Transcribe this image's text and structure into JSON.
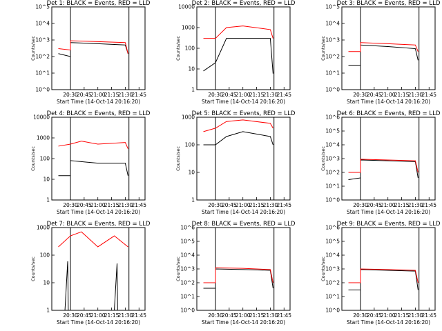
{
  "figure": {
    "xlabel": "Start Time (14-Oct-14 20:16:20)",
    "ylabel": "Counts/sec",
    "xticks": [
      "20:30",
      "20:45",
      "21:00",
      "21:15",
      "21:30",
      "21:45"
    ],
    "colors": {
      "events": "#000000",
      "lld": "#ff0000",
      "background": "#ffffff"
    }
  },
  "chart_data": [
    {
      "type": "line",
      "title": "Det 1: BLACK = Events, RED = LLD",
      "ytype": "log",
      "ylim": [
        1,
        100000
      ],
      "yticks": [
        "10^0",
        "10^1",
        "10^2",
        "10^3",
        "10^4",
        "10^5"
      ],
      "events_window": [
        "20:30",
        "21:34"
      ],
      "series": [
        {
          "color": "#000000",
          "points": [
            [
              20.28,
              150
            ],
            [
              20.5,
              100
            ],
            [
              20.5,
              700
            ],
            [
              21.0,
              600
            ],
            [
              21.5,
              500
            ],
            [
              21.55,
              150
            ]
          ]
        },
        {
          "color": "#ff0000",
          "points": [
            [
              20.28,
              300
            ],
            [
              20.5,
              250
            ],
            [
              20.5,
              900
            ],
            [
              21.0,
              800
            ],
            [
              21.5,
              700
            ],
            [
              21.55,
              150
            ]
          ]
        }
      ]
    },
    {
      "type": "line",
      "title": "Det 2: BLACK = Events, RED = LLD",
      "ytype": "log",
      "ylim": [
        1,
        10000
      ],
      "yticks": [
        "1",
        "10",
        "100",
        "1000",
        "10000"
      ],
      "events_window": [
        "20:30",
        "21:34"
      ],
      "series": [
        {
          "color": "#000000",
          "points": [
            [
              20.28,
              8
            ],
            [
              20.5,
              20
            ],
            [
              20.7,
              300
            ],
            [
              21.0,
              300
            ],
            [
              21.5,
              300
            ],
            [
              21.55,
              6
            ]
          ]
        },
        {
          "color": "#ff0000",
          "points": [
            [
              20.28,
              300
            ],
            [
              20.5,
              300
            ],
            [
              20.7,
              1000
            ],
            [
              21.0,
              1200
            ],
            [
              21.5,
              800
            ],
            [
              21.55,
              300
            ]
          ]
        }
      ]
    },
    {
      "type": "line",
      "title": "Det 3: BLACK = Events, RED = LLD",
      "ytype": "log",
      "ylim": [
        1,
        100000
      ],
      "yticks": [
        "10^0",
        "10^1",
        "10^2",
        "10^3",
        "10^4",
        "10^5"
      ],
      "events_window": [
        "20:30",
        "21:34"
      ],
      "series": [
        {
          "color": "#000000",
          "points": [
            [
              20.28,
              30
            ],
            [
              20.5,
              30
            ],
            [
              20.5,
              500
            ],
            [
              21.0,
              400
            ],
            [
              21.5,
              300
            ],
            [
              21.55,
              60
            ]
          ]
        },
        {
          "color": "#ff0000",
          "points": [
            [
              20.28,
              200
            ],
            [
              20.5,
              200
            ],
            [
              20.5,
              700
            ],
            [
              21.0,
              600
            ],
            [
              21.5,
              500
            ],
            [
              21.55,
              200
            ]
          ]
        }
      ]
    },
    {
      "type": "line",
      "title": "Det 4: BLACK = Events, RED = LLD",
      "ytype": "log",
      "ylim": [
        1,
        10000
      ],
      "yticks": [
        "1",
        "10",
        "100",
        "1000",
        "10000"
      ],
      "events_window": [
        "20:30",
        "21:34"
      ],
      "series": [
        {
          "color": "#000000",
          "points": [
            [
              20.28,
              15
            ],
            [
              20.5,
              15
            ],
            [
              20.5,
              80
            ],
            [
              21.0,
              60
            ],
            [
              21.5,
              60
            ],
            [
              21.55,
              15
            ]
          ]
        },
        {
          "color": "#ff0000",
          "points": [
            [
              20.28,
              400
            ],
            [
              20.5,
              500
            ],
            [
              20.7,
              700
            ],
            [
              21.0,
              500
            ],
            [
              21.5,
              600
            ],
            [
              21.55,
              300
            ]
          ]
        }
      ]
    },
    {
      "type": "line",
      "title": "Det 5: BLACK = Events, RED = LLD",
      "ytype": "log",
      "ylim": [
        1,
        1000
      ],
      "yticks": [
        "1",
        "10",
        "100",
        "1000"
      ],
      "events_window": [
        "20:30",
        "21:34"
      ],
      "series": [
        {
          "color": "#000000",
          "points": [
            [
              20.28,
              100
            ],
            [
              20.5,
              100
            ],
            [
              20.7,
              200
            ],
            [
              21.0,
              300
            ],
            [
              21.5,
              200
            ],
            [
              21.55,
              100
            ]
          ]
        },
        {
          "color": "#ff0000",
          "points": [
            [
              20.28,
              300
            ],
            [
              20.5,
              400
            ],
            [
              20.7,
              700
            ],
            [
              21.0,
              800
            ],
            [
              21.5,
              600
            ],
            [
              21.55,
              400
            ]
          ]
        }
      ]
    },
    {
      "type": "line",
      "title": "Det 6: BLACK = Events, RED = LLD",
      "ytype": "log",
      "ylim": [
        1,
        1000000
      ],
      "yticks": [
        "10^0",
        "10^1",
        "10^2",
        "10^3",
        "10^4",
        "10^5",
        "10^6"
      ],
      "events_window": [
        "20:30",
        "21:34"
      ],
      "series": [
        {
          "color": "#000000",
          "points": [
            [
              20.28,
              30
            ],
            [
              20.5,
              40
            ],
            [
              20.5,
              800
            ],
            [
              21.0,
              700
            ],
            [
              21.5,
              600
            ],
            [
              21.55,
              40
            ]
          ]
        },
        {
          "color": "#ff0000",
          "points": [
            [
              20.28,
              100
            ],
            [
              20.5,
              100
            ],
            [
              20.5,
              900
            ],
            [
              21.0,
              800
            ],
            [
              21.5,
              700
            ],
            [
              21.55,
              100
            ]
          ]
        }
      ]
    },
    {
      "type": "line",
      "title": "Det 7: BLACK = Events, RED = LLD",
      "ytype": "log",
      "ylim": [
        1,
        1000
      ],
      "yticks": [
        "1",
        "10",
        "100",
        "1000"
      ],
      "events_window": [
        "20:30",
        "21:34"
      ],
      "series": [
        {
          "color": "#000000",
          "points": [
            [
              20.4,
              1
            ],
            [
              20.45,
              60
            ],
            [
              20.46,
              1
            ],
            [
              21.3,
              1
            ],
            [
              21.35,
              50
            ],
            [
              21.36,
              1
            ]
          ]
        },
        {
          "color": "#ff0000",
          "points": [
            [
              20.28,
              200
            ],
            [
              20.5,
              500
            ],
            [
              20.7,
              700
            ],
            [
              21.0,
              200
            ],
            [
              21.3,
              500
            ],
            [
              21.55,
              200
            ]
          ]
        }
      ]
    },
    {
      "type": "line",
      "title": "Det 8: BLACK = Events, RED = LLD",
      "ytype": "log",
      "ylim": [
        1,
        1000000
      ],
      "yticks": [
        "10^0",
        "10^1",
        "10^2",
        "10^3",
        "10^4",
        "10^5",
        "10^6"
      ],
      "events_window": [
        "20:30",
        "21:34"
      ],
      "series": [
        {
          "color": "#000000",
          "points": [
            [
              20.28,
              40
            ],
            [
              20.5,
              40
            ],
            [
              20.5,
              1000
            ],
            [
              21.0,
              900
            ],
            [
              21.5,
              800
            ],
            [
              21.55,
              40
            ]
          ]
        },
        {
          "color": "#ff0000",
          "points": [
            [
              20.28,
              100
            ],
            [
              20.5,
              100
            ],
            [
              20.5,
              1200
            ],
            [
              21.0,
              1100
            ],
            [
              21.5,
              900
            ],
            [
              21.55,
              100
            ]
          ]
        }
      ]
    },
    {
      "type": "line",
      "title": "Det 9: BLACK = Events, RED = LLD",
      "ytype": "log",
      "ylim": [
        1,
        1000000
      ],
      "yticks": [
        "10^0",
        "10^1",
        "10^2",
        "10^3",
        "10^4",
        "10^5",
        "10^6"
      ],
      "events_window": [
        "20:30",
        "21:34"
      ],
      "series": [
        {
          "color": "#000000",
          "points": [
            [
              20.28,
              30
            ],
            [
              20.5,
              30
            ],
            [
              20.5,
              900
            ],
            [
              21.0,
              800
            ],
            [
              21.5,
              700
            ],
            [
              21.55,
              30
            ]
          ]
        },
        {
          "color": "#ff0000",
          "points": [
            [
              20.28,
              100
            ],
            [
              20.5,
              100
            ],
            [
              20.5,
              1000
            ],
            [
              21.0,
              900
            ],
            [
              21.5,
              800
            ],
            [
              21.55,
              100
            ]
          ]
        }
      ]
    }
  ]
}
